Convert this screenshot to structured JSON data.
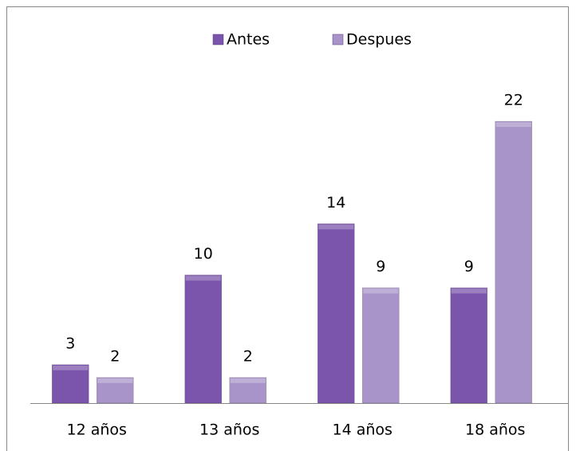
{
  "chart_data": {
    "type": "bar",
    "categories": [
      "12 años",
      "13 años",
      "14 años",
      "18 años"
    ],
    "series": [
      {
        "name": "Antes",
        "color": "#7b54ab",
        "values": [
          3,
          10,
          14,
          9
        ]
      },
      {
        "name": "Despues",
        "color": "#a894c9",
        "values": [
          2,
          2,
          9,
          22
        ]
      }
    ],
    "ylim": [
      0,
      22
    ],
    "legend": "top",
    "grid": false
  }
}
